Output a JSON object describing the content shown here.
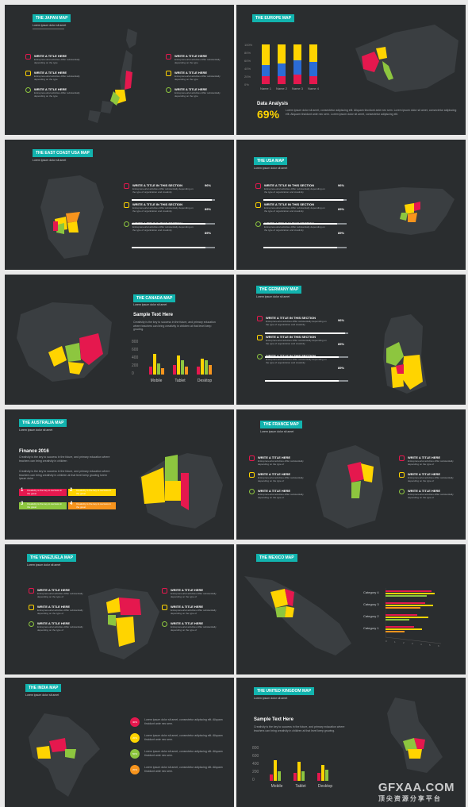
{
  "colors": {
    "bg": "#2a2d2f",
    "teal": "#12b3ae",
    "red": "#e5184e",
    "yellow": "#ffd400",
    "green": "#8dc63f",
    "orange": "#f7941d"
  },
  "s1": {
    "title": "THE JAPAN MAP",
    "sub": "Lorem ipsum dolor sit amet",
    "left": [
      {
        "t": "WRITE A TITLE HERE",
        "d": "Entrepreneurial activities differ substantially depending on the type"
      },
      {
        "t": "WRITE A TITLE HERE",
        "d": "Entrepreneurial activities differ substantially depending on the type"
      },
      {
        "t": "WRITE A TITLE HERE",
        "d": "Entrepreneurial activities differ substantially depending on the type"
      }
    ],
    "right": [
      {
        "t": "WRITE A TITLE HERE",
        "d": "Entrepreneurial activities differ substantially depending on the type"
      },
      {
        "t": "WRITE A TITLE HERE",
        "d": "Entrepreneurial activities differ substantially depending on the type"
      },
      {
        "t": "WRITE A TITLE HERE",
        "d": "Entrepreneurial activities differ substantially depending on the type"
      }
    ]
  },
  "s2": {
    "title": "THE EUROPE MAP",
    "big": "69%",
    "heading": "Data Analysis",
    "text": "Lorem ipsum dolor sit amet, consectetur adipiscing elit. Aliquam tincidunt ante nec sem. Lorem ipsum dolor sit amet, consectetur adipiscing elit. Aliquam tincidunt ante nec sem. Lorem ipsum dolor sit amet, consectetur adipiscing elit.",
    "chart": {
      "yticks": [
        "100%",
        "80%",
        "60%",
        "40%",
        "20%",
        "0%"
      ],
      "categories": [
        "Name 1",
        "Name 2",
        "Name 3",
        "Name 4"
      ]
    }
  },
  "s3": {
    "title": "THE EAST COAST USA MAP",
    "sub": "Lorem ipsum dolor sit amet",
    "items": [
      {
        "t": "WRITE A TITLE IN THIS SECTION",
        "d": "Entrepreneurial activities differ substantially depending on the type of organization and creativity",
        "p": "96%",
        "v": 0.96
      },
      {
        "t": "WRITE A TITLE IN THIS SECTION",
        "d": "Entrepreneurial activities differ substantially depending on the type of organization and creativity",
        "p": "89%",
        "v": 0.89
      },
      {
        "t": "WRITE A TITLE IN THIS SECTION",
        "d": "Entrepreneurial activities differ substantially depending on the type of organization and creativity",
        "p": "89%",
        "v": 0.89
      }
    ]
  },
  "s4": {
    "title": "THE USA MAP",
    "sub": "Lorem ipsum dolor sit amet",
    "items": [
      {
        "t": "WRITE A TITLE IN THIS SECTION",
        "d": "Entrepreneurial activities differ substantially depending on the type of organization and creativity",
        "p": "96%",
        "v": 0.96
      },
      {
        "t": "WRITE A TITLE IN THIS SECTION",
        "d": "Entrepreneurial activities differ substantially depending on the type of organization and creativity",
        "p": "89%",
        "v": 0.89
      },
      {
        "t": "WRITE A TITLE IN THIS SECTION",
        "d": "Entrepreneurial activities differ substantially depending on the type of organization and creativity",
        "p": "89%",
        "v": 0.89
      }
    ]
  },
  "s5": {
    "title": "THE CANADA MAP",
    "sub": "Lorem ipsum dolor sit amet",
    "heading": "Sample Text Here",
    "text": "Creativity is the key to success in the future, and primary education where teachers can bring creativity in children at that level keep growing.",
    "chart": {
      "yticks": [
        "800",
        "600",
        "400",
        "200",
        "0"
      ],
      "categories": [
        "Mobile",
        "Tablet",
        "Desktop"
      ]
    }
  },
  "s6": {
    "title": "THE GERMANY MAP",
    "sub": "Lorem ipsum dolor sit amet",
    "items": [
      {
        "t": "WRITE A TITLE IN THIS SECTION",
        "d": "Entrepreneurial activities differ substantially depending on the type of organization and creativity",
        "p": "96%",
        "v": 0.96
      },
      {
        "t": "WRITE A TITLE IN THIS SECTION",
        "d": "Entrepreneurial activities differ substantially depending on the type of organization and creativity",
        "p": "89%",
        "v": 0.89
      },
      {
        "t": "WRITE A TITLE IN THIS SECTION",
        "d": "Entrepreneurial activities differ substantially depending on the type of organization and creativity",
        "p": "89%",
        "v": 0.89
      }
    ]
  },
  "s7": {
    "title": "THE AUSTRALIA MAP",
    "sub": "Lorem ipsum dolor sit amet",
    "heading": "Finance 2016",
    "text1": "Creativity is the key to success in the future, and primary education where teachers can bring creativity in children",
    "text2": "Creativity is the key to success in the future, and primary education where teachers can bring creativity in children at that level keep growing lorem ipsum dolor",
    "boxes": [
      {
        "n": "1",
        "t": "Creativity is the key to success in the great"
      },
      {
        "n": "2",
        "t": "Creativity is the key to success in the great"
      },
      {
        "n": "3",
        "t": "Creativity is the key to success in the great"
      },
      {
        "n": "4",
        "t": "Creativity is the key to success in the great"
      }
    ]
  },
  "s8": {
    "title": "THE FRANCE MAP",
    "sub": "Lorem ipsum dolor sit amet",
    "left": [
      {
        "t": "WRITE A TITLE HERE",
        "d": "Entrepreneurial activities differ substantially depending on the type of"
      },
      {
        "t": "WRITE A TITLE HERE",
        "d": "Entrepreneurial activities differ substantially depending on the type of"
      },
      {
        "t": "WRITE A TITLE HERE",
        "d": "Entrepreneurial activities differ substantially depending on the type of"
      }
    ],
    "right": [
      {
        "t": "WRITE A TITLE HERE",
        "d": "Entrepreneurial activities differ substantially depending on the type of"
      },
      {
        "t": "WRITE A TITLE HERE",
        "d": "Entrepreneurial activities differ substantially depending on the type of"
      },
      {
        "t": "WRITE A TITLE HERE",
        "d": "Entrepreneurial activities differ substantially depending on the type of"
      }
    ]
  },
  "s9": {
    "title": "THE VENEZUELA MAP",
    "sub": "Lorem ipsum dolor sit amet",
    "left": [
      {
        "t": "WRITE A TITLE HERE",
        "d": "Entrepreneurial activities differ substantially depending on the type of"
      },
      {
        "t": "WRITE A TITLE HERE",
        "d": "Entrepreneurial activities differ substantially depending on the type of"
      },
      {
        "t": "WRITE A TITLE HERE",
        "d": "Entrepreneurial activities differ substantially depending on the type of"
      }
    ],
    "right": [
      {
        "t": "WRITE A TITLE HERE",
        "d": "Entrepreneurial activities differ substantially depending on the type of"
      },
      {
        "t": "WRITE A TITLE HERE",
        "d": "Entrepreneurial activities differ substantially depending on the type of"
      },
      {
        "t": "WRITE A TITLE HERE",
        "d": "Entrepreneurial activities differ substantially depending on the type of"
      }
    ]
  },
  "s10": {
    "title": "THE MEXICO MAP",
    "categories": [
      "Category 4",
      "Category 3",
      "Category 2",
      "Category 1"
    ],
    "xticks": [
      "0",
      "1",
      "2",
      "3",
      "4",
      "5",
      "6"
    ]
  },
  "s11": {
    "title": "THE INDIA MAP",
    "sub": "Lorem ipsum dolor sit amet",
    "items": [
      {
        "p": "40%",
        "t": "Lorem ipsum dolor sit amet, consectetur adipiscing elit. Aliquam tincidunt ante nec sem."
      },
      {
        "p": "20%",
        "t": "Lorem ipsum dolor sit amet, consectetur adipiscing elit. Aliquam tincidunt ante nec sem."
      },
      {
        "p": "50%",
        "t": "Lorem ipsum dolor sit amet, consectetur adipiscing elit. Aliquam tincidunt ante nec sem."
      },
      {
        "p": "20%",
        "t": "Lorem ipsum dolor sit amet, consectetur adipiscing elit. Aliquam tincidunt ante nec sem."
      }
    ]
  },
  "s12": {
    "title": "THE UNITED KINGDOM MAP",
    "sub": "Lorem ipsum dolor sit amet",
    "heading": "Sample Text Here",
    "text": "Creativity is the key to success in the future, and primary education where teachers can bring creativity in children at that level keep growing.",
    "chart": {
      "yticks": [
        "800",
        "600",
        "400",
        "200",
        "0"
      ],
      "categories": [
        "Mobile",
        "Tablet",
        "Desktop"
      ]
    }
  },
  "watermark": {
    "logo": "GFXAA.COM",
    "cn": "顶尖资源分享平台"
  }
}
